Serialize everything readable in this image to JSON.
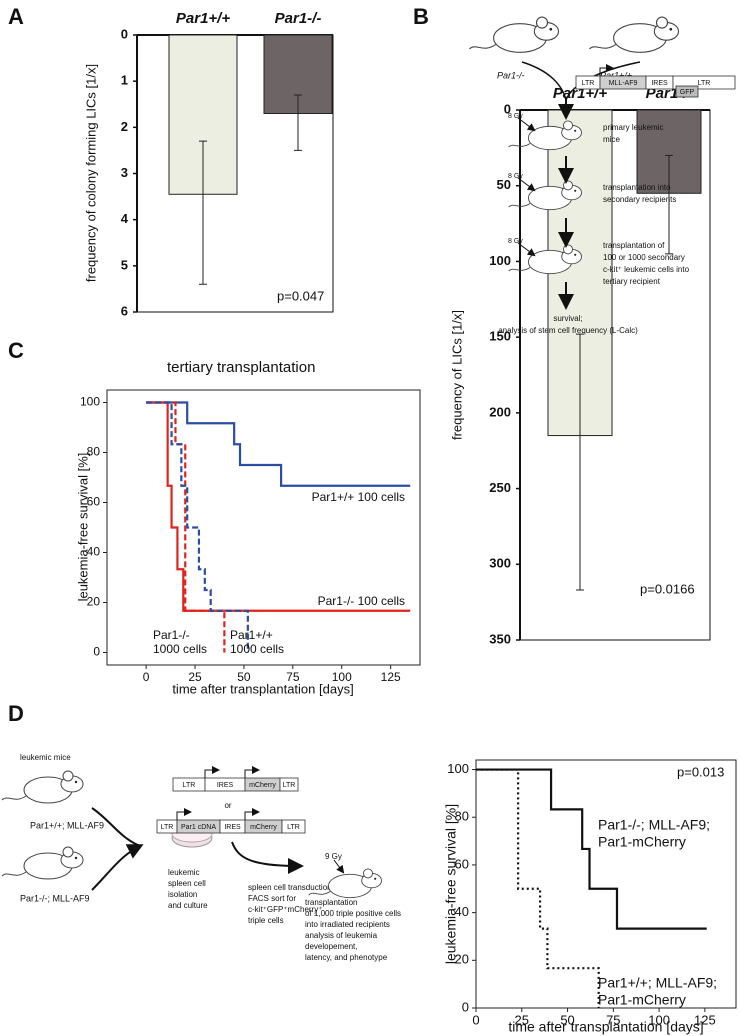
{
  "panels": [
    "A",
    "B",
    "C",
    "D"
  ],
  "chart_data": [
    {
      "type": "bar",
      "categories": [
        "Par1+/+",
        "Par1-/-"
      ],
      "values": [
        3.45,
        1.7
      ],
      "ci_low": [
        2.3,
        1.3
      ],
      "ci_high": [
        5.4,
        2.5
      ],
      "colors": [
        "#eceee2",
        "#6d6565"
      ],
      "ylabel": "frequency of colony forming LICs [1/x]",
      "ylim": [
        0,
        6
      ],
      "yticks": [
        0,
        1,
        2,
        3,
        4,
        5,
        6
      ],
      "y_inverted": true,
      "annotation": "p=0.047"
    },
    {
      "type": "step",
      "title": "tertiary transplantation",
      "xlabel": "time after transplantation [days]",
      "ylabel": "leukemia-free survival [%]",
      "xlim": [
        -20,
        140
      ],
      "ylim": [
        -5,
        105
      ],
      "xticks": [
        0,
        25,
        50,
        75,
        100,
        125
      ],
      "yticks": [
        0,
        20,
        40,
        60,
        80,
        100
      ],
      "series": [
        {
          "color": "#2b4ea2",
          "dash": "solid",
          "x": [
            0,
            21,
            45,
            48,
            69,
            135
          ],
          "values": [
            100,
            91.7,
            83.3,
            75,
            66.7,
            66.7
          ]
        },
        {
          "color": "#e2231a",
          "dash": "solid",
          "x": [
            0,
            11,
            13,
            16,
            19,
            135
          ],
          "values": [
            100,
            66.7,
            50,
            33.3,
            16.7,
            16.7
          ]
        },
        {
          "color": "#e2231a",
          "dash": "dashed",
          "x": [
            0,
            15,
            20,
            40
          ],
          "values": [
            100,
            83.3,
            16.7,
            0
          ]
        },
        {
          "color": "#2b4ea2",
          "dash": "dashed",
          "x": [
            0,
            13,
            18,
            21,
            27,
            30,
            33,
            52
          ],
          "values": [
            100,
            83.3,
            66.7,
            50,
            33.3,
            25,
            16.7,
            0
          ]
        }
      ],
      "annotations": [
        [
          "Par1+/+ 100 cells"
        ],
        [
          "Par1-/- 100 cells"
        ],
        [
          "Par1-/-",
          "1000 cells"
        ],
        [
          "Par1+/+",
          "1000 cells"
        ]
      ]
    },
    {
      "type": "bar",
      "categories": [
        "Par1+/+",
        "Par1-/-"
      ],
      "values": [
        215,
        55
      ],
      "ci_low": [
        148,
        30
      ],
      "ci_high": [
        317,
        95
      ],
      "colors": [
        "#eceee2",
        "#6d6565"
      ],
      "ylabel": "frequency of LICs [1/x]",
      "ylim": [
        0,
        350
      ],
      "yticks": [
        0,
        50,
        100,
        150,
        200,
        250,
        300,
        350
      ],
      "y_inverted": true,
      "annotation": "p=0.0166"
    },
    {
      "type": "step",
      "xlabel": "time after transplantation [days]",
      "ylabel": "leukemia-free survival [%]",
      "xlim": [
        0,
        142
      ],
      "ylim": [
        0,
        104
      ],
      "xticks": [
        0,
        25,
        50,
        75,
        100,
        125
      ],
      "yticks": [
        0,
        20,
        40,
        60,
        80,
        100
      ],
      "series": [
        {
          "color": "#111111",
          "dash": "solid",
          "x": [
            0,
            41,
            58,
            62,
            77,
            126
          ],
          "values": [
            100,
            83.3,
            66.7,
            50,
            33.3,
            33.3
          ]
        },
        {
          "color": "#111111",
          "dash": "dotted",
          "x": [
            0,
            23,
            35,
            39,
            67
          ],
          "values": [
            100,
            50,
            33.3,
            16.7,
            0
          ]
        }
      ],
      "annotations": [
        [
          "Par1-/-; MLL-AF9;",
          "Par1-mCherry"
        ],
        [
          "Par1+/+; MLL-AF9;",
          "Par1-mCherry"
        ]
      ],
      "annotation": "p=0.013"
    }
  ],
  "diagram_b": {
    "mouse_labels": [
      "Par1-/-",
      "Par1+/+"
    ],
    "construct": [
      "LTR",
      "MLL-AF9",
      "IRES",
      "LTR"
    ],
    "reporter": "GFP",
    "dose": [
      "8 Gy",
      "8 Gy",
      "8 Gy"
    ],
    "steps": [
      [
        "primary leukemic",
        "mice"
      ],
      [
        "transplantation into",
        "secondary recipients"
      ],
      [
        "transplantation of",
        "100 or 1000 secondary",
        "c-kit⁺ leukemic cells into",
        "tertiary recipient"
      ]
    ],
    "outcome": [
      "survival;",
      "analysis of stem cell frequency (L-Calc)"
    ]
  },
  "diagram_d": {
    "source_label": "leukemic mice",
    "mouse_labels": [
      "Par1+/+; MLL-AF9",
      "Par1-/-; MLL-AF9"
    ],
    "culture": [
      "leukemic",
      "spleen cell",
      "isolation",
      "and culture"
    ],
    "construct_control": [
      "LTR",
      "IRES",
      "mCherry",
      "LTR"
    ],
    "or": "or",
    "construct_par1": [
      "LTR",
      "Par1 cDNA",
      "IRES",
      "mCherry",
      "LTR"
    ],
    "transduction": [
      "spleen cell transduction",
      "FACS sort for",
      "c-kit⁺GFP⁺mCherry⁺",
      "triple cells"
    ],
    "dose": "9 Gy",
    "transplant": [
      "transplantation",
      "of 1,000 triple positive cells",
      "into irradiated recipients",
      "analysis of leukemia",
      "developement,",
      "latency, and phenotype"
    ]
  }
}
